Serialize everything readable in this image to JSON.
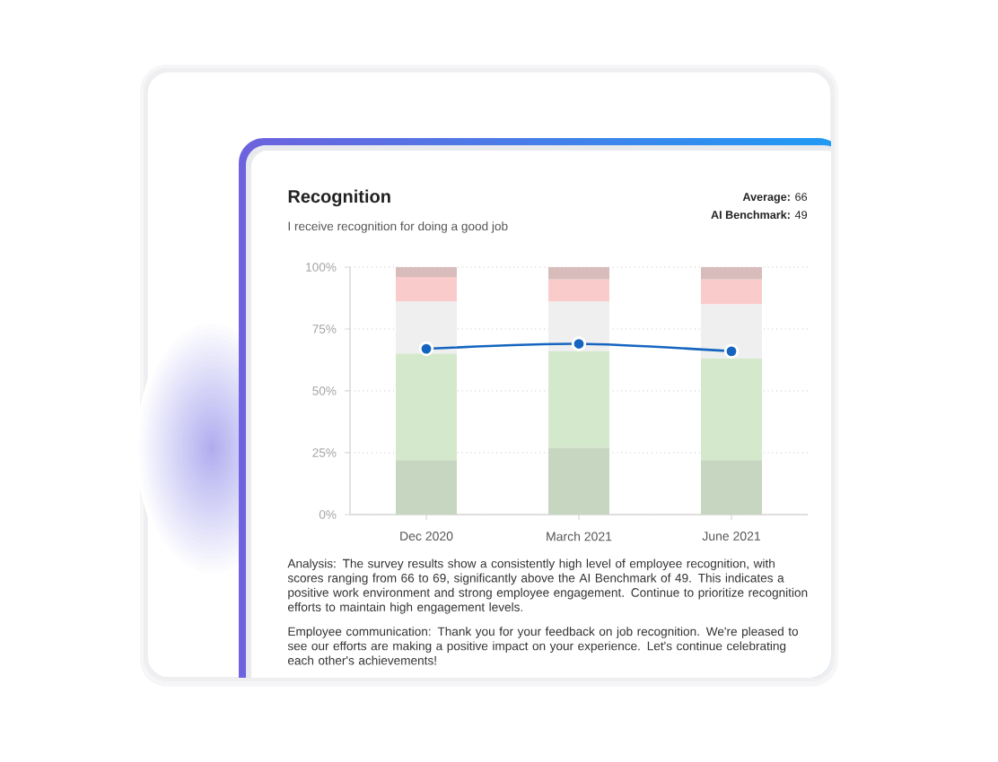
{
  "chart_data": {
    "type": "bar",
    "stacked": true,
    "title": "Recognition",
    "subtitle": "I receive recognition for doing a good job",
    "categories": [
      "Dec 2020",
      "March 2021",
      "June 2021"
    ],
    "series": [
      {
        "color": "#c7d6c0",
        "values": [
          22,
          27,
          22
        ]
      },
      {
        "color": "#d4e8cc",
        "values": [
          43,
          39,
          41
        ]
      },
      {
        "color": "#efefef",
        "values": [
          21,
          20,
          22
        ]
      },
      {
        "color": "#f9cbcb",
        "values": [
          10,
          9,
          10
        ]
      },
      {
        "color": "#d8bcbc",
        "values": [
          4,
          5,
          5
        ]
      },
      {
        "type": "line",
        "color": "#1565c0",
        "values": [
          67,
          69,
          66
        ]
      }
    ],
    "marker": "circle",
    "grid": "y",
    "ylim": [
      0,
      100
    ],
    "yticks": [
      {
        "value": 0,
        "label": "0%"
      },
      {
        "value": 25,
        "label": "25%"
      },
      {
        "value": 50,
        "label": "50%"
      },
      {
        "value": 75,
        "label": "75%"
      },
      {
        "value": 100,
        "label": "100%"
      }
    ],
    "annotations": [
      "**Average:** 66",
      "**AI Benchmark:** 49",
      "Analysis: The survey results show a consistently high level of employee recognition, with scores ranging from 66 to 69, significantly above the AI Benchmark of 49. This indicates a positive work environment and strong employee engagement. Continue to prioritize recognition efforts to maintain high engagement levels.",
      "Employee communication: Thank you for your feedback on job recognition. We're pleased to see our efforts are making a positive impact on your experience. Let's continue celebrating each other's achievements!"
    ]
  }
}
